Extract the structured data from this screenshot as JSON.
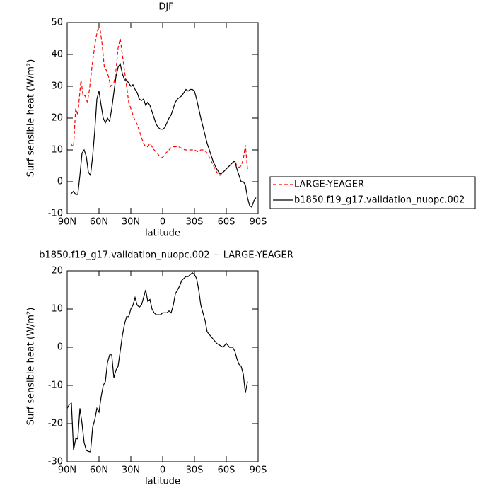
{
  "chart_data": [
    {
      "type": "line",
      "title": "DJF",
      "xlabel": "latitude",
      "ylabel": "Surf sensible heat (W/m²)",
      "xlim": [
        90,
        -90
      ],
      "xticks": [
        {
          "value": 90,
          "label": "90N"
        },
        {
          "value": 60,
          "label": "60N"
        },
        {
          "value": 30,
          "label": "30N"
        },
        0,
        {
          "value": -30,
          "label": "30S"
        },
        {
          "value": -60,
          "label": "60S"
        },
        {
          "value": -90,
          "label": "90S"
        }
      ],
      "ylim": [
        -10,
        50
      ],
      "yticks": [
        -10,
        0,
        10,
        20,
        30,
        40,
        50
      ],
      "legend": "right",
      "series": [
        {
          "name": "LARGE-YEAGER",
          "color": "#ff0000",
          "linestyle": "dashed",
          "x": [
            87,
            84,
            82,
            80,
            77,
            75,
            73,
            71,
            69,
            66,
            63,
            61,
            59,
            57,
            55,
            53,
            51,
            49,
            46,
            44,
            42,
            40,
            38,
            36,
            34,
            32,
            30,
            27,
            24,
            22,
            20,
            18,
            16,
            14,
            12,
            10,
            8,
            5,
            3,
            1,
            -1,
            -3,
            -6,
            -9,
            -12,
            -15,
            -18,
            -21,
            -24,
            -27,
            -30,
            -33,
            -36,
            -39,
            -42,
            -45,
            -48,
            -51,
            -54,
            -57,
            -60,
            -63,
            -66,
            -68,
            -70,
            -72,
            -74,
            -76,
            -78,
            -80
          ],
          "values": [
            12,
            11,
            23,
            21,
            32,
            27,
            27,
            25,
            29,
            38,
            45,
            48,
            48,
            43,
            36,
            35,
            33,
            30,
            31,
            35,
            42,
            45,
            40,
            35,
            30,
            25,
            23,
            20,
            18,
            16,
            14,
            12,
            11,
            11,
            12,
            11,
            10,
            9,
            8,
            7.5,
            8,
            9,
            10,
            11,
            11,
            11,
            10.5,
            10,
            10,
            10,
            10,
            9.5,
            10,
            10,
            9,
            7,
            5,
            3,
            2,
            3,
            4,
            5,
            6,
            6.5,
            5,
            4.5,
            5,
            7,
            11.5,
            4
          ]
        },
        {
          "name": "b1850.f19_g17.validation_nuopc.002",
          "color": "#000000",
          "linestyle": "solid",
          "x": [
            87,
            84,
            82,
            80,
            78,
            76,
            74,
            72,
            70,
            68,
            66,
            64,
            62,
            60,
            58,
            56,
            54,
            52,
            50,
            48,
            46,
            44,
            42,
            40,
            38,
            36,
            34,
            32,
            30,
            28,
            26,
            24,
            22,
            20,
            18,
            16,
            14,
            12,
            10,
            8,
            6,
            4,
            2,
            0,
            -2,
            -4,
            -6,
            -8,
            -10,
            -12,
            -14,
            -16,
            -18,
            -20,
            -22,
            -24,
            -26,
            -28,
            -30,
            -32,
            -34,
            -36,
            -39,
            -42,
            -45,
            -48,
            -51,
            -54,
            -57,
            -60,
            -63,
            -66,
            -68,
            -70,
            -72,
            -74,
            -76,
            -78,
            -80,
            -82,
            -84,
            -86,
            -88
          ],
          "values": [
            -4,
            -3,
            -4,
            -4,
            2,
            9,
            10,
            8,
            3,
            2,
            8,
            16,
            26,
            28.5,
            24,
            20,
            18.5,
            20,
            19,
            23,
            28,
            33,
            36,
            37,
            34,
            32,
            32,
            31,
            30,
            30.5,
            29,
            28,
            26,
            25.5,
            26,
            24,
            25,
            24,
            22,
            20,
            18,
            17,
            16.5,
            16.5,
            17,
            18.5,
            20,
            21,
            23,
            25,
            26,
            26.5,
            27,
            28,
            29,
            28.5,
            29,
            29,
            28.5,
            26,
            23,
            20,
            16,
            12,
            9,
            6,
            4,
            2.5,
            3,
            4,
            5,
            6,
            6.5,
            4,
            2,
            0,
            0,
            -1,
            -5,
            -7.5,
            -8,
            -6,
            -5
          ]
        }
      ]
    },
    {
      "type": "line",
      "title": "b1850.f19_g17.validation_nuopc.002 − LARGE-YEAGER",
      "xlabel": "latitude",
      "ylabel": "Surf sensible heat (W/m²)",
      "xlim": [
        90,
        -90
      ],
      "xticks": [
        {
          "value": 90,
          "label": "90N"
        },
        {
          "value": 60,
          "label": "60N"
        },
        {
          "value": 30,
          "label": "30N"
        },
        0,
        {
          "value": -30,
          "label": "30S"
        },
        {
          "value": -60,
          "label": "60S"
        },
        {
          "value": -90,
          "label": "90S"
        }
      ],
      "ylim": [
        -30,
        20
      ],
      "yticks": [
        -30,
        -20,
        -10,
        0,
        10,
        20
      ],
      "series": [
        {
          "color": "#000000",
          "linestyle": "solid",
          "x": [
            90,
            88,
            86,
            84,
            82,
            80,
            78,
            76,
            74,
            72,
            70,
            68,
            66,
            64,
            62,
            60,
            58,
            56,
            54,
            52,
            50,
            48,
            46,
            44,
            42,
            40,
            38,
            36,
            34,
            32,
            30,
            28,
            26,
            24,
            22,
            20,
            18,
            16,
            14,
            12,
            10,
            8,
            6,
            4,
            2,
            0,
            -2,
            -4,
            -6,
            -8,
            -10,
            -12,
            -14,
            -16,
            -18,
            -20,
            -22,
            -24,
            -26,
            -28,
            -30,
            -32,
            -34,
            -36,
            -38,
            -40,
            -42,
            -45,
            -48,
            -51,
            -54,
            -57,
            -60,
            -63,
            -66,
            -68,
            -70,
            -72,
            -74,
            -76,
            -78,
            -80
          ],
          "values": [
            -16,
            -15,
            -14.7,
            -27,
            -24,
            -24,
            -16,
            -20,
            -25,
            -27,
            -27.3,
            -27.4,
            -21,
            -19,
            -16,
            -17,
            -13,
            -10,
            -9,
            -4,
            -2,
            -2,
            -8,
            -6,
            -5,
            -1,
            3,
            6,
            8,
            8,
            10,
            11,
            13,
            11,
            10.5,
            11,
            13,
            15,
            12,
            12.5,
            10,
            9,
            8.5,
            8.5,
            8.5,
            9,
            9,
            9,
            9.5,
            9,
            11,
            14,
            15,
            16,
            17.5,
            18,
            18.5,
            18.5,
            19,
            19.5,
            19,
            18,
            15,
            11,
            9,
            7,
            4,
            3,
            2,
            1,
            0.5,
            0,
            1,
            0,
            0,
            -1,
            -3,
            -4.5,
            -5,
            -7,
            -12,
            -9
          ]
        }
      ]
    }
  ]
}
